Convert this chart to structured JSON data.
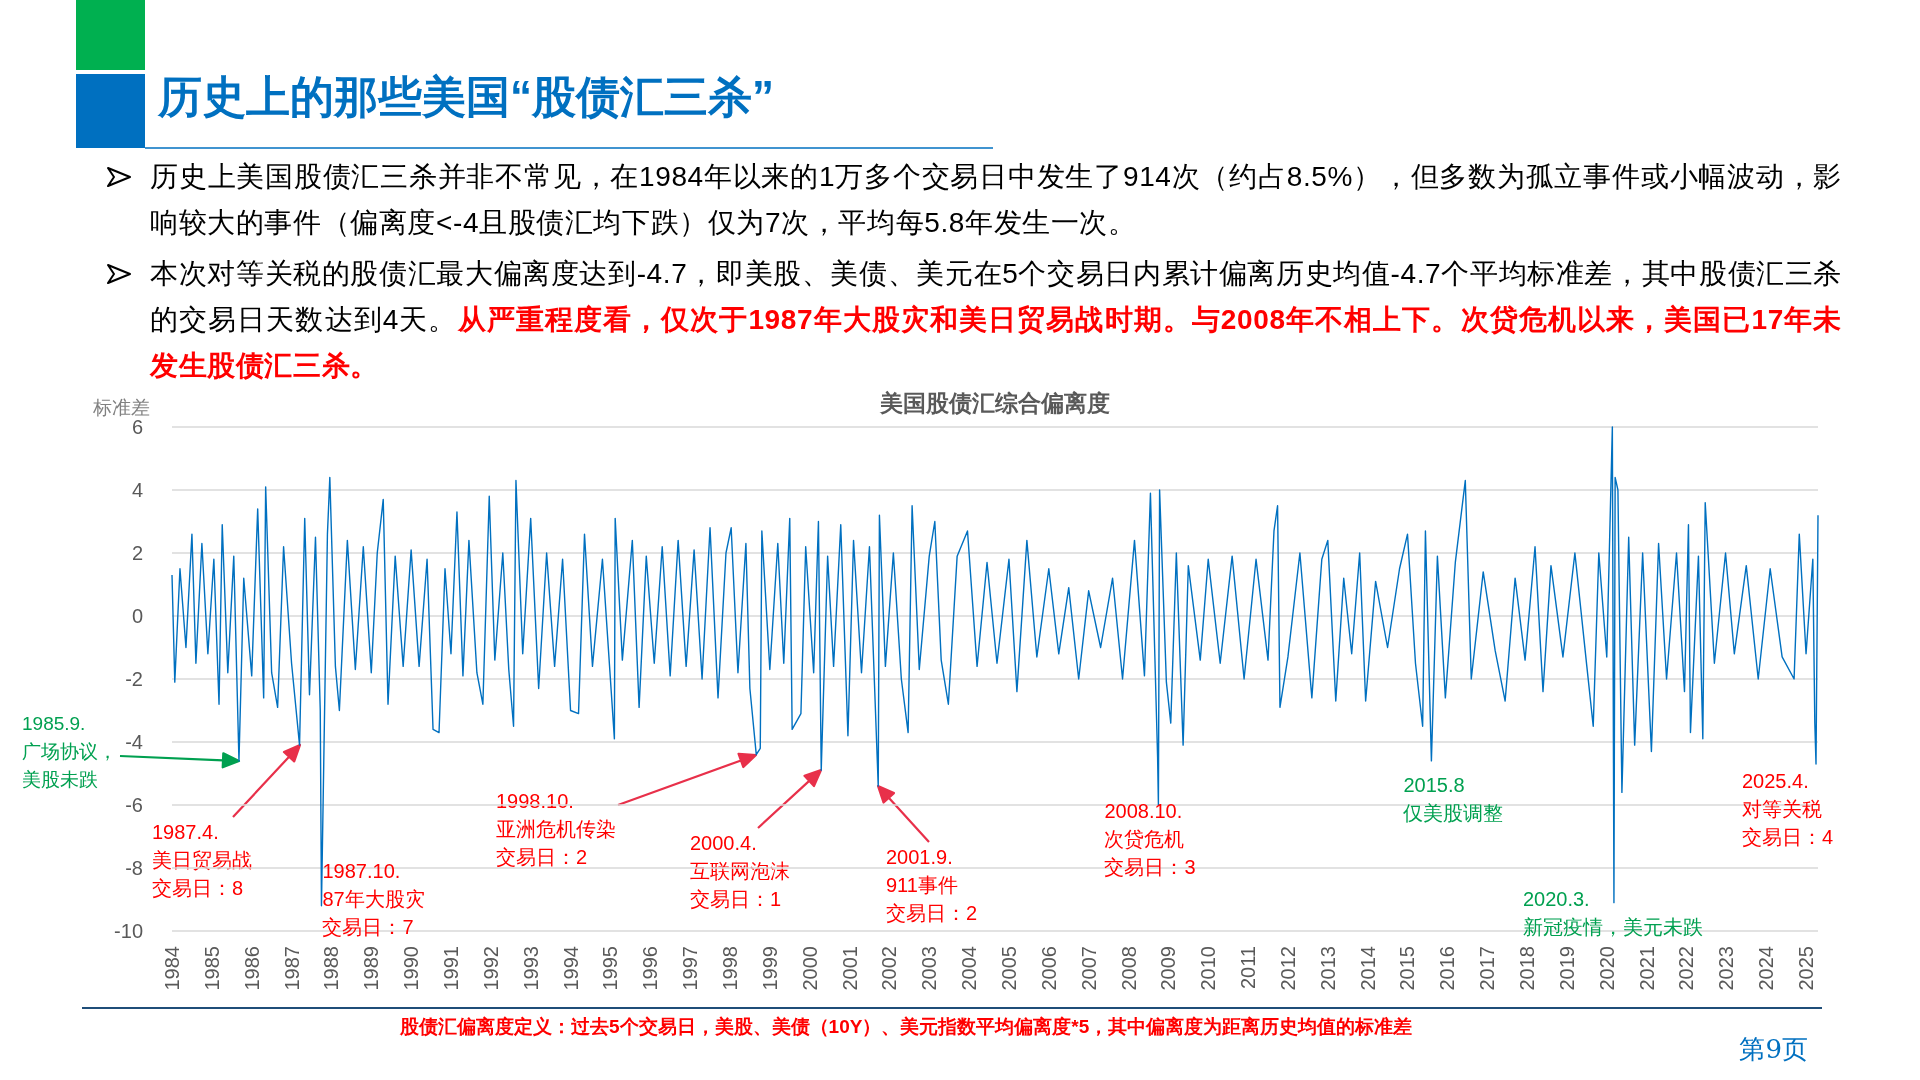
{
  "chart_data": {
    "type": "line",
    "title": "历史上的那些美国“股债汇三杀”",
    "subtitle": "美国股债汇综合偏离度",
    "ylabel": "标准差",
    "color": "#0070c0",
    "xlim": [
      1984,
      2025.3
    ],
    "ylim": [
      -10,
      6
    ],
    "yticks": [
      -10,
      -8,
      -6,
      -4,
      -2,
      0,
      2,
      4,
      6
    ],
    "xticks": [
      1984,
      1985,
      1986,
      1987,
      1988,
      1989,
      1990,
      1991,
      1992,
      1993,
      1994,
      1995,
      1996,
      1997,
      1998,
      1999,
      2000,
      2001,
      2002,
      2003,
      2004,
      2005,
      2006,
      2007,
      2008,
      2009,
      2010,
      2011,
      2012,
      2013,
      2014,
      2015,
      2016,
      2017,
      2018,
      2019,
      2020,
      2021,
      2022,
      2023,
      2024,
      2025
    ],
    "grid": "y",
    "x": [
      1984.0,
      1984.07,
      1984.2,
      1984.35,
      1984.5,
      1984.6,
      1984.75,
      1984.9,
      1985.05,
      1985.18,
      1985.26,
      1985.4,
      1985.55,
      1985.68,
      1985.8,
      1986.0,
      1986.15,
      1986.3,
      1986.35,
      1986.5,
      1986.65,
      1986.8,
      1987.0,
      1987.2,
      1987.33,
      1987.45,
      1987.6,
      1987.72,
      1987.75,
      1987.9,
      1987.96,
      1988.1,
      1988.2,
      1988.4,
      1988.6,
      1988.8,
      1989.0,
      1989.15,
      1989.3,
      1989.42,
      1989.6,
      1989.8,
      1990.0,
      1990.2,
      1990.4,
      1990.55,
      1990.7,
      1990.85,
      1991.0,
      1991.15,
      1991.3,
      1991.45,
      1991.65,
      1991.8,
      1991.96,
      1992.1,
      1992.3,
      1992.45,
      1992.57,
      1992.63,
      1992.8,
      1993.0,
      1993.2,
      1993.4,
      1993.6,
      1993.8,
      1994.0,
      1994.2,
      1994.35,
      1994.55,
      1994.8,
      1995.1,
      1995.12,
      1995.3,
      1995.55,
      1995.72,
      1995.9,
      1996.1,
      1996.3,
      1996.5,
      1996.7,
      1996.9,
      1997.1,
      1997.3,
      1997.5,
      1997.7,
      1997.9,
      1998.03,
      1998.2,
      1998.4,
      1998.5,
      1998.66,
      1998.76,
      1998.8,
      1999.0,
      1999.2,
      1999.35,
      1999.5,
      1999.56,
      1999.78,
      1999.9,
      2000.1,
      2000.22,
      2000.29,
      2000.45,
      2000.6,
      2000.78,
      2000.96,
      2001.1,
      2001.3,
      2001.5,
      2001.72,
      2001.75,
      2001.9,
      2002.1,
      2002.3,
      2002.47,
      2002.57,
      2002.75,
      2003.0,
      2003.14,
      2003.3,
      2003.48,
      2003.7,
      2003.96,
      2004.2,
      2004.45,
      2004.7,
      2005.0,
      2005.2,
      2005.45,
      2005.7,
      2006.0,
      2006.25,
      2006.5,
      2006.75,
      2007.0,
      2007.3,
      2007.6,
      2007.85,
      2008.15,
      2008.4,
      2008.55,
      2008.73,
      2008.75,
      2008.78,
      2008.95,
      2009.06,
      2009.2,
      2009.37,
      2009.5,
      2009.8,
      2010.0,
      2010.3,
      2010.6,
      2010.9,
      2011.2,
      2011.5,
      2011.65,
      2011.74,
      2011.8,
      2012.0,
      2012.3,
      2012.6,
      2012.85,
      2013.0,
      2013.2,
      2013.4,
      2013.6,
      2013.8,
      2013.95,
      2014.2,
      2014.5,
      2014.8,
      2015.0,
      2015.2,
      2015.38,
      2015.45,
      2015.6,
      2015.75,
      2015.95,
      2016.2,
      2016.45,
      2016.6,
      2016.9,
      2017.2,
      2017.45,
      2017.7,
      2017.95,
      2018.2,
      2018.4,
      2018.6,
      2018.9,
      2019.2,
      2019.5,
      2019.66,
      2019.8,
      2020.0,
      2020.14,
      2020.18,
      2020.21,
      2020.28,
      2020.38,
      2020.55,
      2020.7,
      2020.9,
      2021.12,
      2021.3,
      2021.5,
      2021.75,
      2021.95,
      2022.05,
      2022.1,
      2022.3,
      2022.41,
      2022.47,
      2022.7,
      2022.98,
      2023.2,
      2023.5,
      2023.8,
      2024.1,
      2024.4,
      2024.7,
      2024.83,
      2025.0,
      2025.17,
      2025.22,
      2025.25,
      2025.3
    ],
    "values": [
      1.3,
      -2.1,
      1.5,
      -1.0,
      2.6,
      -1.5,
      2.3,
      -1.2,
      1.8,
      -2.8,
      2.9,
      -1.8,
      1.9,
      -4.6,
      1.2,
      -1.9,
      3.4,
      -2.6,
      4.1,
      -1.8,
      -2.9,
      2.2,
      -1.5,
      -4.1,
      3.1,
      -2.5,
      2.5,
      -3.0,
      -9.2,
      2.6,
      4.4,
      -1.6,
      -3.0,
      2.4,
      -1.7,
      2.2,
      -1.8,
      2.0,
      3.7,
      -2.8,
      1.9,
      -1.6,
      2.1,
      -1.6,
      1.8,
      -3.6,
      -3.7,
      1.5,
      -1.2,
      3.3,
      -1.9,
      2.4,
      -1.8,
      -2.8,
      3.8,
      -1.4,
      2.0,
      -1.7,
      -3.5,
      4.3,
      -1.2,
      3.1,
      -2.3,
      2.0,
      -1.6,
      1.8,
      -3.0,
      -3.1,
      2.6,
      -1.6,
      1.8,
      -3.9,
      3.1,
      -1.4,
      2.4,
      -2.9,
      1.9,
      -1.5,
      2.2,
      -1.9,
      2.4,
      -1.6,
      2.1,
      -2.0,
      2.8,
      -2.6,
      2.0,
      2.8,
      -1.8,
      2.3,
      -2.3,
      -4.4,
      -4.2,
      2.7,
      -1.7,
      2.3,
      -1.5,
      3.1,
      -3.6,
      -3.1,
      2.2,
      -1.8,
      3.0,
      -4.9,
      1.9,
      -1.6,
      2.9,
      -3.8,
      2.4,
      -1.8,
      2.2,
      -5.4,
      3.2,
      -1.6,
      2.0,
      -2.0,
      -3.7,
      3.5,
      -1.7,
      1.9,
      3.0,
      -1.4,
      -2.8,
      1.9,
      2.7,
      -1.6,
      1.7,
      -1.5,
      1.8,
      -2.4,
      2.4,
      -1.3,
      1.5,
      -1.2,
      0.9,
      -2.0,
      0.8,
      -1.0,
      1.2,
      -2.0,
      2.4,
      -1.9,
      3.9,
      -4.5,
      -6.0,
      4.0,
      -2.1,
      -3.4,
      2.0,
      -4.1,
      1.6,
      -1.4,
      1.8,
      -1.5,
      1.9,
      -2.0,
      1.8,
      -1.4,
      2.7,
      3.5,
      -2.9,
      -1.3,
      2.0,
      -2.6,
      1.8,
      2.4,
      -2.7,
      1.2,
      -1.2,
      2.0,
      -2.7,
      1.1,
      -1.0,
      1.5,
      2.6,
      -1.5,
      -3.5,
      2.7,
      -4.6,
      1.9,
      -2.6,
      1.7,
      4.3,
      -2.0,
      1.4,
      -1.1,
      -2.7,
      1.2,
      -1.4,
      2.2,
      -2.4,
      1.6,
      -1.3,
      2.0,
      -1.6,
      -3.5,
      2.0,
      -1.3,
      6.0,
      -9.1,
      4.4,
      4.0,
      -5.6,
      2.5,
      -4.1,
      2.0,
      -4.3,
      2.3,
      -2.0,
      2.0,
      -2.4,
      2.9,
      -3.7,
      1.9,
      -3.9,
      3.6,
      -1.5,
      2.0,
      -1.2,
      1.6,
      -2.0,
      1.5,
      -1.3,
      -2.0,
      2.6,
      -1.2,
      1.8,
      -3.4,
      -4.7,
      3.2
    ],
    "annotations": [
      "历史上美国股债汇三杀并非不常见，在1984年以来的1万多个交易日中发生了914次（约占8.5%），但多数为孤立事件或小幅波动，影响较大的事件（偏离度<-4且股债汇均下跌）仅为7次，平均每5.8年发生一次。",
      "本次对等关税的股债汇最大偏离度达到-4.7，即美股、美债、美元在5个交易日内累计偏离历史均值-4.7个平均标准差，其中股债汇三杀的交易日天数达到4天。",
      "从严重程度看，仅次于1987年大股灾和美日贸易战时期。与2008年不相上下。次贷危机以来，美国已17年未发生股债汇三杀。",
      "股债汇偏离度定义：过去5个交易日，美股、美债（10Y）、美元指数平均偏离度*5，其中偏离度为距离历史均值的标准差",
      "第9页",
      "1985.9.广场协议，美股未跌",
      "1987.4.美日贸易战交易日：8",
      "1998.10.亚洲危机传染交易日：2",
      "2000.4.互联网泡沫交易日：1",
      "2001.9.911事件交易日：2",
      {
        "text": "1987.10.87年大股灾交易日：7",
        "x": 1987.75,
        "y": -9.2
      },
      {
        "text": "2008.10.次贷危机交易日：3",
        "x": 2008.75,
        "y": -6.0
      },
      {
        "text": "2015.8仅美股调整",
        "x": 2015.6,
        "y": -4.6
      },
      {
        "text": "2020.3.新冠疫情，美元未跌",
        "x": 2020.18,
        "y": -9.1
      },
      {
        "text": "2025.4.对等关税交易日：4",
        "x": 2025.25,
        "y": -4.7
      }
    ]
  }
}
